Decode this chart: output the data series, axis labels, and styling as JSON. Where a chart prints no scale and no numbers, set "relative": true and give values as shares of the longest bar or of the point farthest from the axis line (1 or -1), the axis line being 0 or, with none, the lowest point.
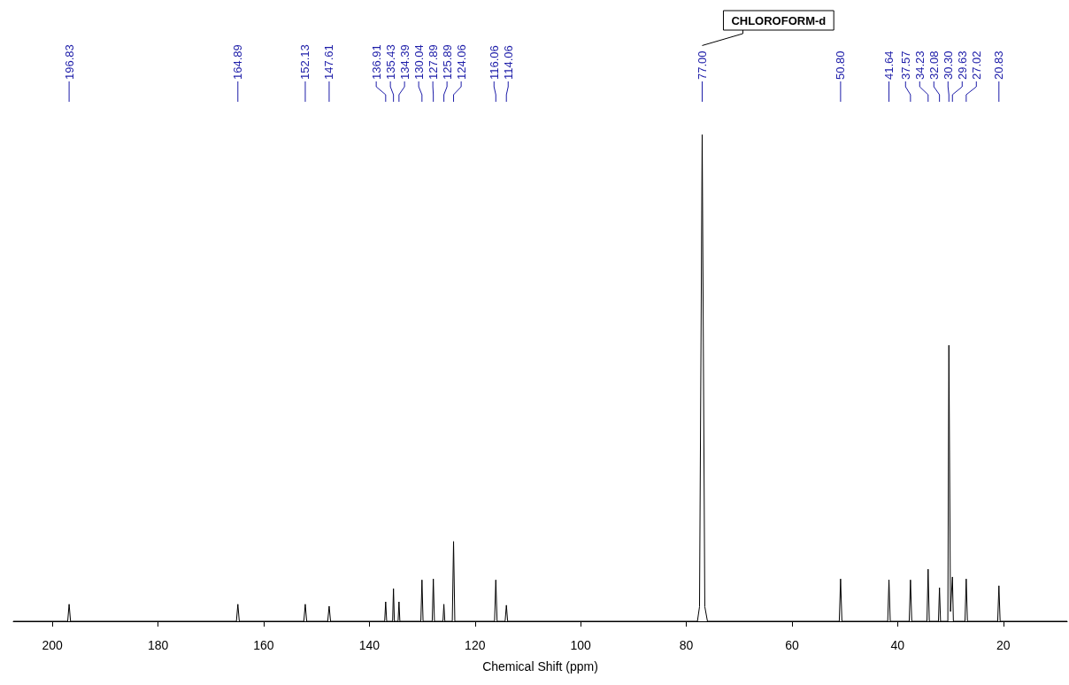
{
  "chart_data": {
    "type": "line",
    "relative": true,
    "xlabel": "Chemical Shift (ppm)",
    "xlim": [
      207.4,
      7.9
    ],
    "xticks": [
      200,
      180,
      160,
      140,
      120,
      100,
      80,
      60,
      40,
      20
    ],
    "grid": false,
    "marker": "none",
    "line_style": "solid",
    "series": [
      {
        "color": "#000000",
        "x": [
          207.4,
          197.1,
          196.83,
          196.56,
          165.16,
          164.89,
          164.62,
          152.4,
          152.13,
          151.86,
          147.88,
          147.61,
          147.34,
          137.1,
          136.91,
          136.72,
          135.6,
          135.43,
          135.26,
          134.56,
          134.39,
          134.22,
          130.25,
          130.04,
          129.83,
          128.1,
          127.89,
          127.68,
          126.07,
          125.89,
          125.71,
          124.3,
          124.06,
          123.82,
          116.3,
          116.06,
          115.82,
          114.3,
          114.06,
          113.82,
          77.9,
          77.5,
          77.0,
          76.5,
          76.0,
          51.05,
          50.8,
          50.55,
          41.88,
          41.64,
          41.4,
          37.81,
          37.57,
          37.33,
          34.45,
          34.23,
          34.01,
          32.28,
          32.08,
          31.88,
          30.5,
          30.3,
          30.0,
          29.63,
          29.45,
          27.25,
          27.02,
          26.79,
          21.06,
          20.83,
          20.6,
          7.9
        ],
        "values": [
          0,
          0,
          0.035,
          0,
          0,
          0.035,
          0,
          0,
          0.035,
          0,
          0,
          0.031,
          0,
          0,
          0.04,
          0,
          0,
          0.067,
          0,
          0,
          0.04,
          0,
          0,
          0.085,
          0,
          0,
          0.087,
          0,
          0,
          0.035,
          0,
          0,
          0.164,
          0,
          0,
          0.085,
          0,
          0,
          0.033,
          0,
          0,
          0.03,
          1,
          0.03,
          0,
          0,
          0.087,
          0,
          0,
          0.085,
          0,
          0,
          0.085,
          0,
          0,
          0.107,
          0,
          0,
          0.069,
          0,
          0,
          0.567,
          0.02,
          0.091,
          0,
          0,
          0.087,
          0,
          0,
          0.073,
          0,
          0
        ]
      }
    ],
    "annotations": [
      "196.83",
      "164.89",
      "152.13",
      "147.61",
      "136.91",
      "135.43",
      "134.39",
      "130.04",
      "127.89",
      "125.89",
      "124.06",
      "116.06",
      "114.06",
      "77.00",
      "50.80",
      "41.64",
      "37.57",
      "34.23",
      "32.08",
      "30.30",
      "29.63",
      "27.02",
      "20.83",
      "CHLOROFORM-d"
    ]
  }
}
